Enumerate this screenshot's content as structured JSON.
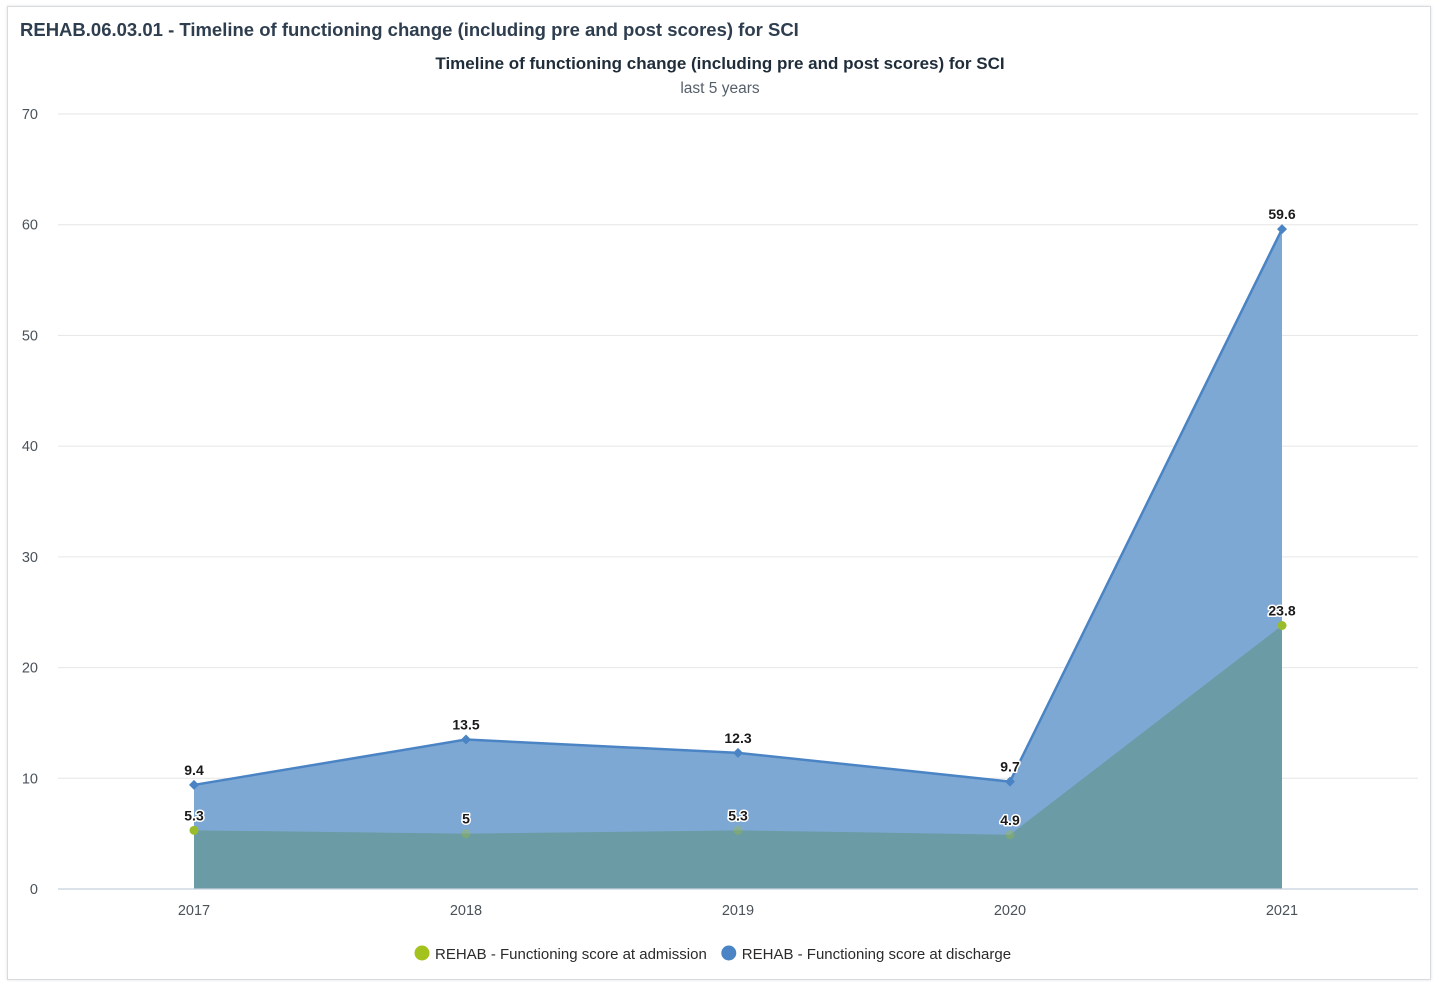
{
  "panel": {
    "title": "REHAB.06.03.01 - Timeline of functioning change (including pre and post scores) for SCI"
  },
  "chart_data": {
    "type": "area",
    "title": "Timeline of functioning change (including pre and post scores) for SCI",
    "subtitle": "last 5 years",
    "categories": [
      "2017",
      "2018",
      "2019",
      "2020",
      "2021"
    ],
    "ylim": [
      0,
      70
    ],
    "yticks": [
      0,
      10,
      20,
      30,
      40,
      50,
      60,
      70
    ],
    "grid": true,
    "legend_position": "bottom-center",
    "series": [
      {
        "name": "REHAB - Functioning score at discharge",
        "values": [
          9.4,
          13.5,
          12.3,
          9.7,
          59.6
        ],
        "labels": [
          "9.4",
          "13.5",
          "12.3",
          "9.7",
          "59.6"
        ],
        "color": "#4a84c4",
        "fill": "#7ea8d4",
        "marker": "diamond"
      },
      {
        "name": "REHAB - Functioning score at admission",
        "values": [
          5.3,
          5,
          5.3,
          4.9,
          23.8
        ],
        "labels": [
          "5.3",
          "5",
          "5.3",
          "4.9",
          "23.8"
        ],
        "color": "#9bbc2a",
        "fill": "#6b9ba5",
        "marker": "circle"
      }
    ],
    "legend": [
      {
        "name": "REHAB - Functioning score at admission",
        "color": "#a4c21e"
      },
      {
        "name": "REHAB - Functioning score at discharge",
        "color": "#4a84c4"
      }
    ]
  }
}
